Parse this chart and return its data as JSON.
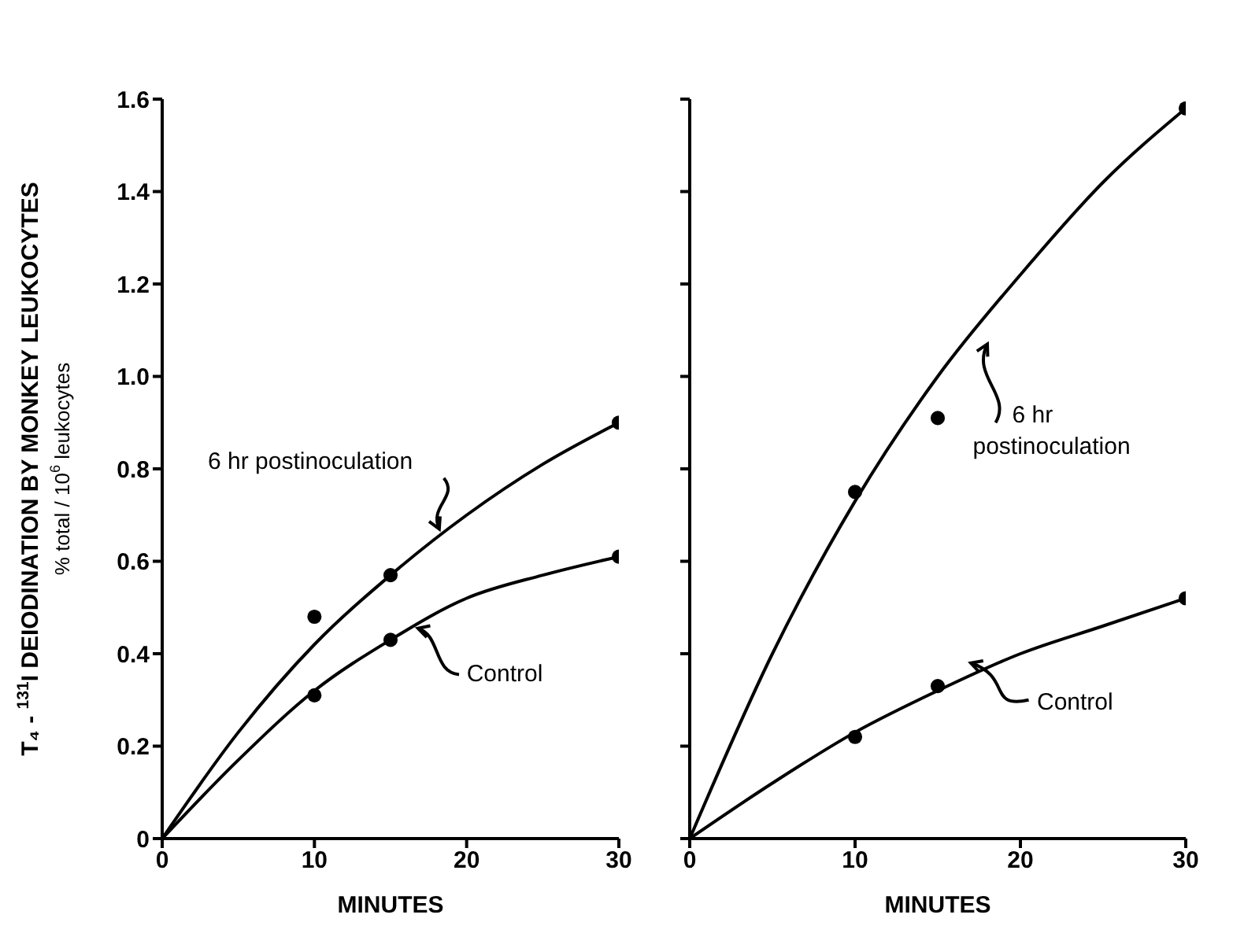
{
  "chart_data": [
    {
      "type": "line",
      "xlabel": "MINUTES",
      "ylabel": "T₄ - $^{131}$I DEIODINATION BY MONKEY LEUKOCYTES\n% total / 10$^{6}$ leukocytes",
      "xlim": [
        0,
        30
      ],
      "xticks": [
        0,
        10,
        20,
        30
      ],
      "ylim": [
        0,
        1.6
      ],
      "yticks": [
        0,
        0.2,
        0.4,
        0.6,
        0.8,
        {
          "value": 1,
          "label": "1.0"
        },
        1.2,
        1.4,
        1.6
      ],
      "grid": false,
      "legend": false,
      "series": [
        {
          "type": "line",
          "name": "6 hr postinoculation",
          "color": "#000000",
          "marker": "none",
          "x": [
            0,
            5,
            10,
            15,
            20,
            25,
            30
          ],
          "values": [
            0,
            0.23,
            0.42,
            0.57,
            0.7,
            0.81,
            0.9
          ]
        },
        {
          "type": "scatter",
          "color": "#000000",
          "marker": "circle",
          "x": [
            10,
            15,
            30
          ],
          "values": [
            0.48,
            0.57,
            0.9
          ]
        },
        {
          "type": "line",
          "name": "Control",
          "color": "#000000",
          "marker": "none",
          "x": [
            0,
            5,
            10,
            15,
            20,
            25,
            30
          ],
          "values": [
            0,
            0.17,
            0.32,
            0.43,
            0.52,
            0.57,
            0.61
          ]
        },
        {
          "type": "scatter",
          "color": "#000000",
          "marker": "circle",
          "x": [
            10,
            15,
            30
          ],
          "values": [
            0.31,
            0.43,
            0.61
          ]
        }
      ]
    },
    {
      "type": "line",
      "xlabel": "MINUTES",
      "xlim": [
        0,
        30
      ],
      "xticks": [
        0,
        10,
        20,
        30
      ],
      "ylim": [
        0,
        1.6
      ],
      "yticks": [
        0,
        0.2,
        0.4,
        0.6,
        0.8,
        1,
        1.2,
        1.4,
        1.6
      ],
      "tick_labels": "x",
      "grid": false,
      "legend": false,
      "series": [
        {
          "type": "line",
          "name": "6 hr postinoculation",
          "color": "#000000",
          "marker": "none",
          "x": [
            0,
            5,
            10,
            15,
            20,
            25,
            30
          ],
          "values": [
            0,
            0.4,
            0.73,
            1.0,
            1.22,
            1.42,
            1.58
          ]
        },
        {
          "type": "scatter",
          "color": "#000000",
          "marker": "circle",
          "x": [
            10,
            15,
            30
          ],
          "values": [
            0.75,
            0.91,
            1.58
          ]
        },
        {
          "type": "line",
          "name": "Control",
          "color": "#000000",
          "marker": "none",
          "x": [
            0,
            5,
            10,
            15,
            20,
            25,
            30
          ],
          "values": [
            0,
            0.12,
            0.23,
            0.32,
            0.4,
            0.46,
            0.52
          ]
        },
        {
          "type": "scatter",
          "color": "#000000",
          "marker": "circle",
          "x": [
            10,
            15,
            30
          ],
          "values": [
            0.22,
            0.33,
            0.52
          ]
        }
      ]
    }
  ]
}
